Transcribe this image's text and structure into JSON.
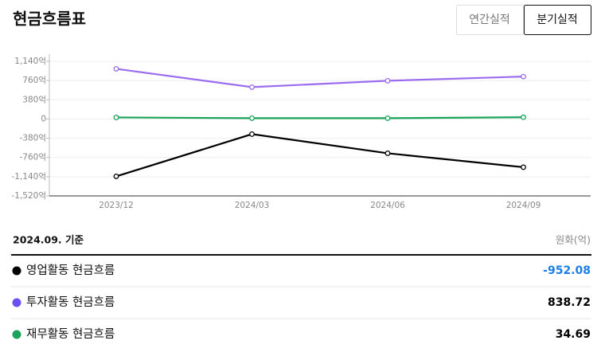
{
  "header": {
    "title": "현금흐름표",
    "tabs": [
      "연간실적",
      "분기실적"
    ],
    "selected_tab": 1
  },
  "chart_data": {
    "type": "line",
    "categories": [
      "2023/12",
      "2024/03",
      "2024/06",
      "2024/09"
    ],
    "series": [
      {
        "name": "영업활동 현금흐름",
        "color": "#000000",
        "values": [
          -1133,
          -299,
          -677,
          -952.08
        ]
      },
      {
        "name": "투자활동 현금흐름",
        "color": "#9b6cf0",
        "values": [
          992,
          630,
          756,
          838.72
        ]
      },
      {
        "name": "재무활동 현금흐름",
        "color": "#1aa35a",
        "values": [
          31,
          16,
          16,
          34.69
        ]
      }
    ],
    "ylim": [
      -1520,
      1140
    ],
    "yticks": [
      {
        "value": -1520,
        "label": "-1,520억"
      },
      {
        "value": -1140,
        "label": "-1,140억"
      },
      {
        "value": -760,
        "label": "-760억"
      },
      {
        "value": -380,
        "label": "-380억"
      },
      0,
      {
        "value": 380,
        "label": "380억"
      },
      {
        "value": 760,
        "label": "760억"
      },
      {
        "value": 1140,
        "label": "1,140억"
      }
    ],
    "grid": true
  },
  "table": {
    "basis": "2024.09. 기준",
    "unit": "원화(억)",
    "rows": [
      {
        "name": "영업활동 현금흐름",
        "dot": "#000000",
        "value": -952.08,
        "value_color": "#1a7ee8"
      },
      {
        "name": "투자활동 현금흐름",
        "dot": "#6a4ff5",
        "value": 838.72,
        "value_color": "#000000"
      },
      {
        "name": "재무활동 현금흐름",
        "dot": "#1aa35a",
        "value": 34.69,
        "value_color": "#000000"
      }
    ]
  }
}
